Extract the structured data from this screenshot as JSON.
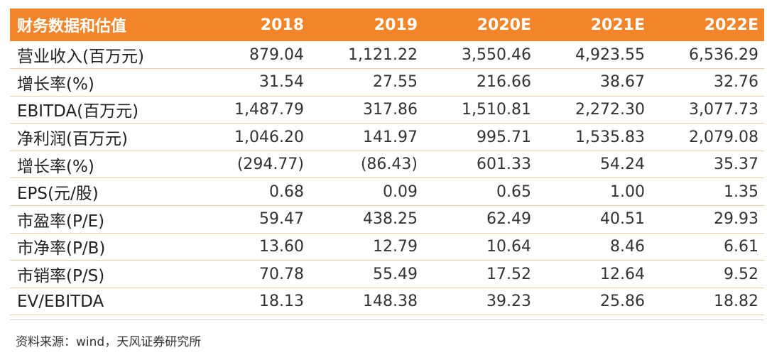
{
  "table": {
    "headers": [
      "财务数据和估值",
      "2018",
      "2019",
      "2020E",
      "2021E",
      "2022E"
    ],
    "rows": [
      [
        "营业收入(百万元)",
        "879.04",
        "1,121.22",
        "3,550.46",
        "4,923.55",
        "6,536.29"
      ],
      [
        "增长率(%)",
        "31.54",
        "27.55",
        "216.66",
        "38.67",
        "32.76"
      ],
      [
        "EBITDA(百万元)",
        "1,487.79",
        "317.86",
        "1,510.81",
        "2,272.30",
        "3,077.73"
      ],
      [
        "净利润(百万元)",
        "1,046.20",
        "141.97",
        "995.71",
        "1,535.83",
        "2,079.08"
      ],
      [
        "增长率(%)",
        "(294.77)",
        "(86.43)",
        "601.33",
        "54.24",
        "35.37"
      ],
      [
        "EPS(元/股)",
        "0.68",
        "0.09",
        "0.65",
        "1.00",
        "1.35"
      ],
      [
        "市盈率(P/E)",
        "59.47",
        "438.25",
        "62.49",
        "40.51",
        "29.93"
      ],
      [
        "市净率(P/B)",
        "13.60",
        "12.79",
        "10.64",
        "8.46",
        "6.61"
      ],
      [
        "市销率(P/S)",
        "70.78",
        "55.49",
        "17.52",
        "12.64",
        "9.52"
      ],
      [
        "EV/EBITDA",
        "18.13",
        "148.38",
        "39.23",
        "25.86",
        "18.82"
      ]
    ]
  },
  "source": "资料来源：wind，天风证券研究所",
  "colors": {
    "header_bg": "#f2852a",
    "header_text": "#ffffff",
    "row_rule": "#f4c9a3"
  }
}
